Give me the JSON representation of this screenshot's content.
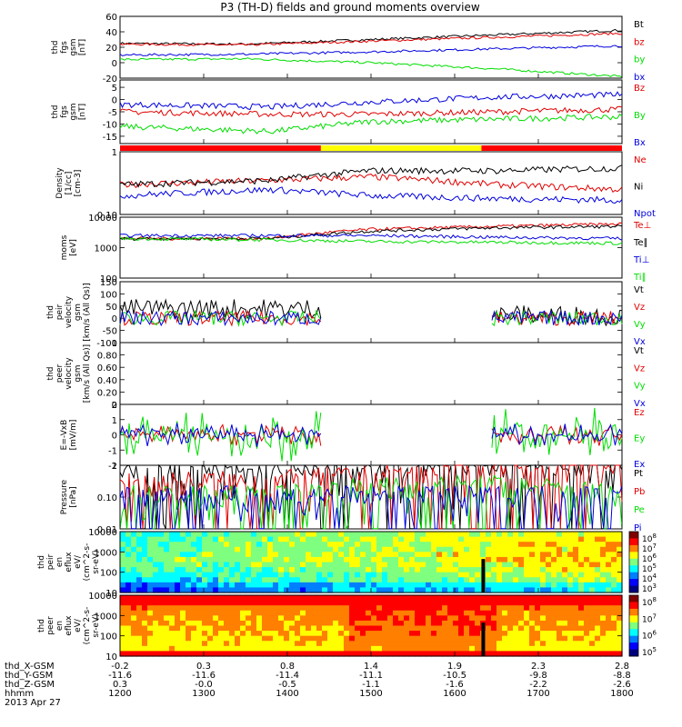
{
  "title": "P3 (TH-D) fields and ground moments overview",
  "date_label": "2013 Apr 27",
  "colors": {
    "black": "#000000",
    "red": "#e00000",
    "green": "#00dd00",
    "blue": "#0000dd",
    "yellow": "#ffff00",
    "bar_red": "#ff0000"
  },
  "chart_data": [
    {
      "type": "line",
      "title": "P3 (TH-D) fields and ground moments overview",
      "ylabel": [
        "thd",
        "fgs",
        "gsm",
        "[nT]"
      ],
      "ylim": [
        -20,
        60
      ],
      "yticks": [
        -20,
        0,
        20,
        40,
        60
      ],
      "yscale": "linear",
      "series": [
        {
          "name": "Bt",
          "color": "#000000",
          "x": [
            0,
            0.25,
            0.5,
            0.75,
            1.0
          ],
          "values": [
            25,
            24,
            30,
            36,
            42
          ]
        },
        {
          "name": "bz",
          "color": "#e00000",
          "x": [
            0,
            0.25,
            0.5,
            0.75,
            1.0
          ],
          "values": [
            24,
            23,
            28,
            33,
            38
          ]
        },
        {
          "name": "by",
          "color": "#00dd00",
          "x": [
            0,
            0.25,
            0.5,
            0.75,
            1.0
          ],
          "values": [
            4,
            5,
            0,
            -8,
            -18
          ]
        },
        {
          "name": "bx",
          "color": "#0000dd",
          "x": [
            0,
            0.25,
            0.5,
            0.75,
            1.0
          ],
          "values": [
            10,
            11,
            14,
            18,
            22
          ]
        }
      ]
    },
    {
      "type": "line",
      "ylabel": [
        "thd",
        "fgs",
        "gsm",
        "[nT]"
      ],
      "ylim": [
        -18,
        8
      ],
      "yticks": [
        -15,
        -10,
        -5,
        0,
        5
      ],
      "yscale": "linear",
      "series": [
        {
          "name": "Bz",
          "color": "#e00000",
          "x": [
            0,
            0.3,
            0.5,
            0.75,
            1.0
          ],
          "values": [
            -5,
            -6,
            -6,
            -5,
            -4
          ]
        },
        {
          "name": "By",
          "color": "#00dd00",
          "x": [
            0,
            0.3,
            0.5,
            0.75,
            1.0
          ],
          "values": [
            -11,
            -13,
            -9,
            -8,
            -7
          ]
        },
        {
          "name": "Bx",
          "color": "#0000dd",
          "x": [
            0,
            0.3,
            0.5,
            0.75,
            1.0
          ],
          "values": [
            -2,
            -3,
            -1,
            1,
            2
          ]
        }
      ]
    },
    {
      "type": "line",
      "ylabel": [
        "Density",
        "[1/cc]",
        "[cm-3]"
      ],
      "ylim": [
        0.1,
        1.0
      ],
      "yticks": [
        0.1,
        1.0
      ],
      "yscale": "log",
      "series": [
        {
          "name": "Ne",
          "color": "#e00000",
          "x": [
            0,
            0.3,
            0.5,
            0.75,
            1.0
          ],
          "values": [
            0.3,
            0.35,
            0.4,
            0.3,
            0.25
          ]
        },
        {
          "name": "Ni",
          "color": "#000000",
          "x": [
            0,
            0.3,
            0.5,
            0.75,
            1.0
          ],
          "values": [
            0.3,
            0.35,
            0.5,
            0.5,
            0.55
          ]
        },
        {
          "name": "Npot",
          "color": "#0000dd",
          "x": [
            0,
            0.3,
            0.5,
            0.75,
            1.0
          ],
          "values": [
            0.2,
            0.25,
            0.2,
            0.18,
            0.17
          ]
        }
      ]
    },
    {
      "type": "line",
      "ylabel": [
        "moms",
        "[eV]"
      ],
      "ylim": [
        100,
        10000
      ],
      "yticks": [
        100,
        1000,
        10000
      ],
      "yscale": "log",
      "series": [
        {
          "name": "Te⊥",
          "color": "#e00000",
          "x": [
            0,
            0.3,
            0.5,
            0.75,
            1.0
          ],
          "values": [
            2000,
            2000,
            4000,
            5000,
            6000
          ]
        },
        {
          "name": "Te∥",
          "color": "#000000",
          "x": [
            0,
            0.3,
            0.5,
            0.75,
            1.0
          ],
          "values": [
            2000,
            2000,
            3500,
            4500,
            5000
          ]
        },
        {
          "name": "Ti⊥",
          "color": "#0000dd",
          "x": [
            0,
            0.3,
            0.5,
            0.75,
            1.0
          ],
          "values": [
            2500,
            2500,
            2500,
            2200,
            2000
          ]
        },
        {
          "name": "Ti∥",
          "color": "#00dd00",
          "x": [
            0,
            0.3,
            0.5,
            0.75,
            1.0
          ],
          "values": [
            2000,
            1800,
            1600,
            1500,
            1400
          ]
        }
      ]
    },
    {
      "type": "line",
      "ylabel": [
        "thd",
        "peir",
        "velocity",
        "gsm",
        "[km/s (All Qs)]"
      ],
      "ylim": [
        -100,
        150
      ],
      "yticks": [
        -100,
        -50,
        0,
        50,
        100,
        150
      ],
      "yscale": "linear",
      "series": [
        {
          "name": "Vt",
          "color": "#000000",
          "x": [
            0,
            0.2,
            0.4,
            0.75,
            1.0
          ],
          "values": [
            40,
            40,
            40,
            15,
            10
          ]
        },
        {
          "name": "Vz",
          "color": "#e00000",
          "x": [
            0,
            0.2,
            0.4,
            0.75,
            1.0
          ],
          "values": [
            0,
            0,
            0,
            0,
            0
          ]
        },
        {
          "name": "Vy",
          "color": "#00dd00",
          "x": [
            0,
            0.2,
            0.4,
            0.75,
            1.0
          ],
          "values": [
            0,
            0,
            0,
            0,
            0
          ]
        },
        {
          "name": "Vx",
          "color": "#0000dd",
          "x": [
            0,
            0.2,
            0.4,
            0.75,
            1.0
          ],
          "values": [
            0,
            0,
            0,
            0,
            0
          ]
        }
      ]
    },
    {
      "type": "line",
      "ylabel": [
        "thd",
        "peer",
        "velocity",
        "gsm",
        "[km/s (All Qs)]"
      ],
      "ylim": [
        0.0,
        1.0
      ],
      "yticks": [
        0.0,
        0.2,
        0.4,
        0.6,
        0.8,
        1.0
      ],
      "yscale": "linear",
      "series": [
        {
          "name": "Vt",
          "color": "#000000",
          "values": []
        },
        {
          "name": "Vz",
          "color": "#e00000",
          "values": []
        },
        {
          "name": "Vy",
          "color": "#00dd00",
          "values": []
        },
        {
          "name": "Vx",
          "color": "#0000dd",
          "values": []
        }
      ]
    },
    {
      "type": "line",
      "ylabel": [
        "E=-VxB",
        "[mV/m]"
      ],
      "ylim": [
        -2,
        2
      ],
      "yticks": [
        -2,
        -1,
        0,
        1,
        2
      ],
      "yscale": "linear",
      "series": [
        {
          "name": "Ez",
          "color": "#e00000",
          "values": [
            0
          ]
        },
        {
          "name": "Ey",
          "color": "#00dd00",
          "values": [
            0
          ]
        },
        {
          "name": "Ex",
          "color": "#0000dd",
          "values": [
            0
          ]
        }
      ]
    },
    {
      "type": "line",
      "ylabel": [
        "Pressure",
        "[nPa]"
      ],
      "ylim": [
        0.01,
        1.0
      ],
      "yticks": [
        0.01,
        0.1,
        1.0
      ],
      "yscale": "log",
      "series": [
        {
          "name": "Pt",
          "color": "#000000",
          "x": [
            0,
            0.3,
            0.5,
            0.75,
            1.0
          ],
          "values": [
            0.45,
            0.5,
            0.6,
            0.75,
            0.9
          ]
        },
        {
          "name": "Pb",
          "color": "#e00000",
          "x": [
            0,
            0.3,
            0.5,
            0.75,
            1.0
          ],
          "values": [
            0.25,
            0.28,
            0.4,
            0.55,
            0.8
          ]
        },
        {
          "name": "Pe",
          "color": "#00dd00",
          "x": [
            0,
            0.3,
            0.5,
            0.75,
            1.0
          ],
          "values": [
            0.1,
            0.09,
            0.17,
            0.2,
            0.1
          ]
        },
        {
          "name": "Pi",
          "color": "#0000dd",
          "x": [
            0,
            0.3,
            0.5,
            0.75,
            1.0
          ],
          "values": [
            0.1,
            0.09,
            0.09,
            0.09,
            0.1
          ]
        }
      ]
    },
    {
      "type": "heatmap",
      "ylabel": [
        "thd",
        "peir",
        "en",
        "eflux",
        "eV/",
        "(cm^2-s-",
        "sr-eV)"
      ],
      "ylim": [
        10,
        10000
      ],
      "yticks": [
        10,
        100,
        1000,
        10000
      ],
      "yscale": "log",
      "colorbar_ticks": [
        "10^8",
        "10^7",
        "10^6",
        "10^5",
        "10^4",
        "10^3"
      ]
    },
    {
      "type": "heatmap",
      "ylabel": [
        "thd",
        "peer",
        "en",
        "eflux",
        "eV/",
        "(cm^2-s-",
        "sr-eV)"
      ],
      "ylim": [
        10,
        10000
      ],
      "yticks": [
        10,
        100,
        1000,
        10000
      ],
      "yscale": "log",
      "colorbar_ticks": [
        "10^8",
        "10^7",
        "10^6",
        "10^5"
      ]
    }
  ],
  "x_axis": {
    "row_labels": [
      "thd_X-GSM",
      "thd_Y-GSM",
      "thd_Z-GSM",
      "hhmm"
    ],
    "columns": [
      [
        "-0.2",
        "-11.6",
        "0.3",
        "1200"
      ],
      [
        "0.3",
        "-11.6",
        "-0.0",
        "1300"
      ],
      [
        "0.8",
        "-11.4",
        "-0.5",
        "1400"
      ],
      [
        "1.4",
        "-11.1",
        "-1.1",
        "1500"
      ],
      [
        "1.9",
        "-10.5",
        "-1.6",
        "1600"
      ],
      [
        "2.3",
        "-9.8",
        "-2.2",
        "1700"
      ],
      [
        "2.8",
        "-8.8",
        "-2.6",
        "1800"
      ]
    ]
  }
}
